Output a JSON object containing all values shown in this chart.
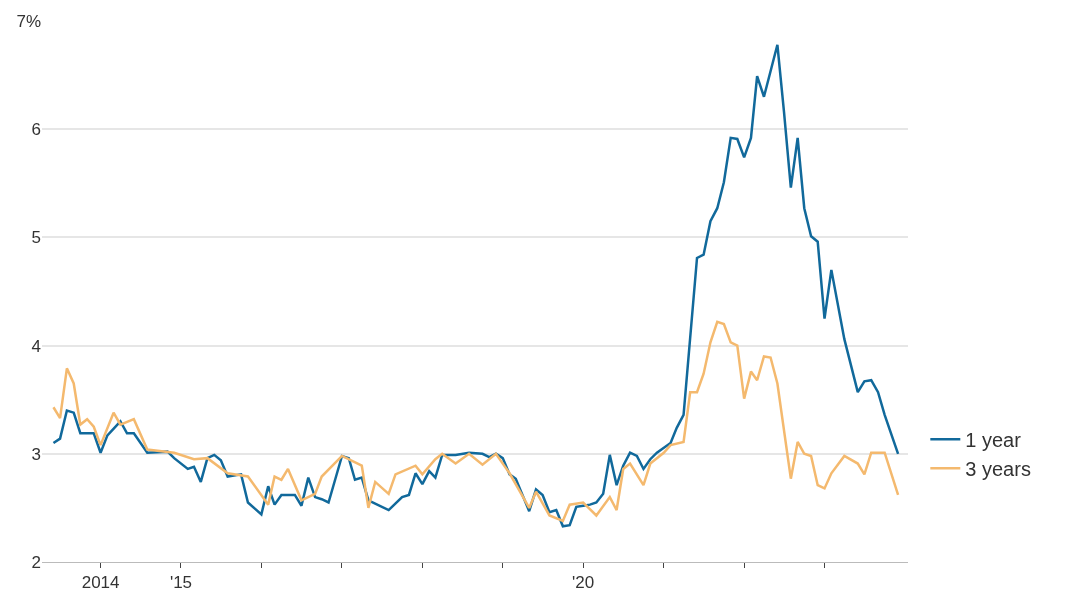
{
  "chart_data": {
    "type": "line",
    "xlim": [
      "2013-04-10",
      "2024-01-15"
    ],
    "xticks": [
      {
        "value": "2014-01-01",
        "label": "2014"
      },
      {
        "value": "2015-01-01",
        "label": "'15"
      },
      {
        "value": "2016-01-01",
        "label": null
      },
      {
        "value": "2017-01-01",
        "label": null
      },
      {
        "value": "2018-01-01",
        "label": null
      },
      {
        "value": "2019-01-01",
        "label": null
      },
      {
        "value": "2020-01-01",
        "label": "'20"
      },
      {
        "value": "2021-01-01",
        "label": null
      },
      {
        "value": "2022-01-01",
        "label": null
      },
      {
        "value": "2023-01-01",
        "label": null
      }
    ],
    "ylim": [
      2,
      7
    ],
    "yticks": [
      2,
      3,
      4,
      5,
      6,
      {
        "value": 7,
        "label": "7%"
      }
    ],
    "grid": "y",
    "legend": "right",
    "marker": "none",
    "line_style": "solid",
    "series": [
      {
        "name": "1 year",
        "color": "#11699b",
        "x": [
          "2013-06",
          "2013-07",
          "2013-08",
          "2013-09",
          "2013-10",
          "2013-12",
          "2014-01",
          "2014-02",
          "2014-04",
          "2014-05",
          "2014-06",
          "2014-08",
          "2014-11",
          "2014-12",
          "2015-02",
          "2015-03",
          "2015-04",
          "2015-05",
          "2015-06",
          "2015-07",
          "2015-08",
          "2015-10",
          "2015-11",
          "2016-01",
          "2016-02",
          "2016-03",
          "2016-04",
          "2016-06",
          "2016-07",
          "2016-08",
          "2016-09",
          "2016-10",
          "2016-11",
          "2017-01",
          "2017-02",
          "2017-03",
          "2017-04",
          "2017-05",
          "2017-08",
          "2017-10",
          "2017-11",
          "2017-12",
          "2018-01",
          "2018-02",
          "2018-03",
          "2018-04",
          "2018-06",
          "2018-08",
          "2018-10",
          "2018-11",
          "2018-12",
          "2019-01",
          "2019-02",
          "2019-03",
          "2019-05",
          "2019-06",
          "2019-07",
          "2019-08",
          "2019-09",
          "2019-10",
          "2019-11",
          "2019-12",
          "2020-01",
          "2020-02",
          "2020-03",
          "2020-04",
          "2020-05",
          "2020-06",
          "2020-07",
          "2020-08",
          "2020-09",
          "2020-10",
          "2020-11",
          "2020-12",
          "2021-02",
          "2021-03",
          "2021-04",
          "2021-06",
          "2021-07",
          "2021-08",
          "2021-09",
          "2021-10",
          "2021-11",
          "2021-12",
          "2022-01",
          "2022-02",
          "2022-03",
          "2022-04",
          "2022-06",
          "2022-07",
          "2022-08",
          "2022-09",
          "2022-10",
          "2022-11",
          "2022-12",
          "2023-01",
          "2023-02",
          "2023-04",
          "2023-06",
          "2023-07",
          "2023-08",
          "2023-09",
          "2023-10",
          "2023-12"
        ],
        "values": [
          3.1,
          3.14,
          3.4,
          3.38,
          3.19,
          3.19,
          3.01,
          3.17,
          3.3,
          3.19,
          3.19,
          3.01,
          3.02,
          2.96,
          2.86,
          2.88,
          2.74,
          2.96,
          2.99,
          2.94,
          2.79,
          2.81,
          2.55,
          2.44,
          2.7,
          2.53,
          2.62,
          2.62,
          2.52,
          2.78,
          2.6,
          2.58,
          2.55,
          2.98,
          2.96,
          2.76,
          2.78,
          2.57,
          2.48,
          2.6,
          2.62,
          2.82,
          2.72,
          2.84,
          2.78,
          2.99,
          2.99,
          3.01,
          3.0,
          2.97,
          3.0,
          2.96,
          2.81,
          2.77,
          2.47,
          2.67,
          2.62,
          2.46,
          2.48,
          2.33,
          2.34,
          2.51,
          2.52,
          2.53,
          2.55,
          2.63,
          2.99,
          2.71,
          2.89,
          3.01,
          2.98,
          2.86,
          2.95,
          3.01,
          3.1,
          3.24,
          3.36,
          4.81,
          4.84,
          5.15,
          5.27,
          5.51,
          5.92,
          5.91,
          5.74,
          5.92,
          6.49,
          6.3,
          6.78,
          6.16,
          5.46,
          5.92,
          5.27,
          5.01,
          4.96,
          4.25,
          4.7,
          4.06,
          3.57,
          3.67,
          3.68,
          3.57,
          3.36,
          3.0
        ]
      },
      {
        "name": "3 years",
        "color": "#f4b96e",
        "x": [
          "2013-06",
          "2013-07",
          "2013-08",
          "2013-09",
          "2013-10",
          "2013-11",
          "2013-12",
          "2014-01",
          "2014-03",
          "2014-04",
          "2014-06",
          "2014-08",
          "2014-12",
          "2015-03",
          "2015-05",
          "2015-08",
          "2015-11",
          "2016-02",
          "2016-03",
          "2016-04",
          "2016-05",
          "2016-07",
          "2016-09",
          "2016-10",
          "2017-01",
          "2017-04",
          "2017-05",
          "2017-06",
          "2017-08",
          "2017-09",
          "2017-12",
          "2018-01",
          "2018-03",
          "2018-04",
          "2018-06",
          "2018-08",
          "2018-10",
          "2018-12",
          "2019-02",
          "2019-05",
          "2019-06",
          "2019-08",
          "2019-10",
          "2019-11",
          "2020-01",
          "2020-03",
          "2020-05",
          "2020-06",
          "2020-07",
          "2020-08",
          "2020-10",
          "2020-11",
          "2021-01",
          "2021-02",
          "2021-04",
          "2021-05",
          "2021-06",
          "2021-07",
          "2021-08",
          "2021-09",
          "2021-10",
          "2021-11",
          "2021-12",
          "2022-01",
          "2022-02",
          "2022-03",
          "2022-04",
          "2022-05",
          "2022-06",
          "2022-08",
          "2022-09",
          "2022-10",
          "2022-11",
          "2022-12",
          "2023-01",
          "2023-02",
          "2023-04",
          "2023-06",
          "2023-07",
          "2023-08",
          "2023-10",
          "2023-12"
        ],
        "values": [
          3.43,
          3.33,
          3.79,
          3.65,
          3.27,
          3.32,
          3.25,
          3.08,
          3.38,
          3.27,
          3.32,
          3.04,
          3.01,
          2.95,
          2.96,
          2.82,
          2.79,
          2.53,
          2.79,
          2.76,
          2.86,
          2.57,
          2.63,
          2.79,
          2.98,
          2.89,
          2.5,
          2.74,
          2.63,
          2.81,
          2.89,
          2.81,
          2.95,
          3.0,
          2.91,
          3.0,
          2.9,
          3.0,
          2.82,
          2.5,
          2.65,
          2.43,
          2.38,
          2.53,
          2.55,
          2.43,
          2.6,
          2.48,
          2.86,
          2.91,
          2.71,
          2.91,
          3.01,
          3.08,
          3.11,
          3.57,
          3.57,
          3.74,
          4.03,
          4.22,
          4.2,
          4.03,
          4.0,
          3.51,
          3.76,
          3.68,
          3.9,
          3.89,
          3.65,
          2.77,
          3.11,
          3.0,
          2.98,
          2.71,
          2.68,
          2.82,
          2.98,
          2.91,
          2.81,
          3.01,
          3.01,
          2.62
        ]
      }
    ]
  }
}
